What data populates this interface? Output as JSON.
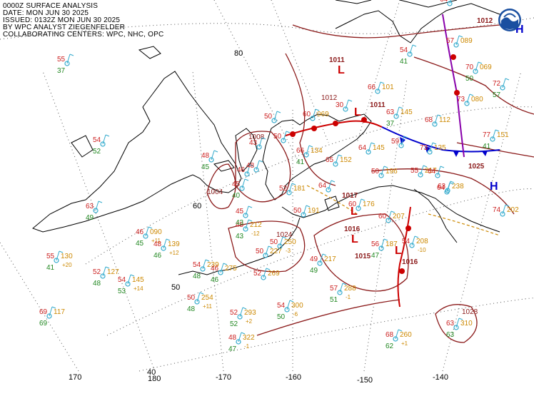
{
  "header": {
    "line1": "0000Z SURFACE ANALYSIS",
    "line2": "DATE: MON JUN 30 2025",
    "line3": "ISSUED: 0132Z MON JUN 30 2025",
    "line4": "BY WPC ANALYST ZIEGENFELDER",
    "line5": "COLLABORATING CENTERS: WPC, NHC, OPC"
  },
  "logo": {
    "icon": "noaa-logo-icon",
    "color": "#1a4fa0"
  },
  "colors": {
    "isobar": "#8b1a1a",
    "low": "#cc0000",
    "high": "#0000cc",
    "temperature": "#cc2222",
    "dewpoint": "#228822",
    "pressure": "#cc8800",
    "wind": "#33aacc",
    "coast": "#000000",
    "graticule": "#555555"
  },
  "graticule_labels": {
    "lat": [
      "80",
      "60",
      "50",
      "40"
    ],
    "lon": [
      "170",
      "180",
      "-170",
      "-160",
      "-150",
      "-140"
    ]
  },
  "isobar_labels": [
    "1012",
    "1008",
    "1004",
    "1024",
    "1028"
  ],
  "pressure_centers": [
    {
      "type": "L",
      "value": "1011"
    },
    {
      "type": "L",
      "value": "1017"
    },
    {
      "type": "L",
      "value": "1016"
    },
    {
      "type": "L",
      "value": "1015"
    },
    {
      "type": "L",
      "value": "1016"
    },
    {
      "type": "L",
      "value": "1011"
    },
    {
      "type": "H",
      "value": "1012"
    },
    {
      "type": "H",
      "value": "1025"
    }
  ],
  "stations": [
    {
      "t": "55",
      "td": "37",
      "p": ""
    },
    {
      "t": "54",
      "td": "52",
      "p": ""
    },
    {
      "t": "63",
      "td": "49",
      "p": ""
    },
    {
      "t": "55",
      "td": "41",
      "p": "130",
      "tend": "+20"
    },
    {
      "t": "52",
      "td": "48",
      "p": "127"
    },
    {
      "t": "54",
      "td": "53",
      "p": "145",
      "tend": "+14"
    },
    {
      "t": "69",
      "td": "69",
      "p": "117"
    },
    {
      "t": "46",
      "td": "45",
      "p": "090",
      "tend": "+11"
    },
    {
      "t": "48",
      "td": "46",
      "p": "139",
      "tend": "+12"
    },
    {
      "t": "54",
      "td": "48",
      "p": "239"
    },
    {
      "t": "46",
      "td": "46",
      "p": "275"
    },
    {
      "t": "50",
      "td": "48",
      "p": "254",
      "tend": "+11"
    },
    {
      "t": "52",
      "td": "52",
      "p": "293",
      "tend": "+2"
    },
    {
      "t": "48",
      "td": "47",
      "p": "322",
      "tend": "-1"
    },
    {
      "t": "52",
      "td": "",
      "p": "269"
    },
    {
      "t": "54",
      "td": "50",
      "p": "300",
      "tend": "-6"
    },
    {
      "t": "45",
      "td": "43",
      "p": "212",
      "tend": "-12"
    },
    {
      "t": "50",
      "td": "",
      "p": "227"
    },
    {
      "t": "50",
      "td": "",
      "p": "250",
      "tend": "-3"
    },
    {
      "t": "49",
      "td": "49",
      "p": "217"
    },
    {
      "t": "57",
      "td": "51",
      "p": "288",
      "tend": "-1"
    },
    {
      "t": "68",
      "td": "62",
      "p": "260",
      "tend": "+1"
    },
    {
      "t": "63",
      "td": "63",
      "p": "310"
    },
    {
      "t": "56",
      "td": "47",
      "p": "187"
    },
    {
      "t": "54",
      "td": "",
      "p": "208",
      "tend": "-10"
    },
    {
      "t": "48",
      "td": "45",
      "p": ""
    },
    {
      "t": "45",
      "td": "40",
      "p": ""
    },
    {
      "t": "45",
      "td": "43",
      "p": ""
    },
    {
      "t": "43",
      "td": "",
      "p": ""
    },
    {
      "t": "52",
      "td": "",
      "p": "181"
    },
    {
      "t": "50",
      "td": "",
      "p": "191"
    },
    {
      "t": "50",
      "td": "",
      "p": ""
    },
    {
      "t": "66",
      "td": "41",
      "p": "134"
    },
    {
      "t": "65",
      "td": "",
      "p": "152"
    },
    {
      "t": "64",
      "td": "",
      "p": "145"
    },
    {
      "t": "50",
      "td": "",
      "p": "196"
    },
    {
      "t": "55",
      "td": "",
      "p": "217"
    },
    {
      "t": "63",
      "td": "",
      "p": "238"
    },
    {
      "t": "60",
      "td": "",
      "p": "069"
    },
    {
      "t": "66",
      "td": "",
      "p": "101"
    },
    {
      "t": "63",
      "td": "37",
      "p": "145"
    },
    {
      "t": "68",
      "td": "",
      "p": "112"
    },
    {
      "t": "59",
      "td": "",
      "p": ""
    },
    {
      "t": "73",
      "td": "",
      "p": "135"
    },
    {
      "t": "70",
      "td": "50",
      "p": "069"
    },
    {
      "t": "73",
      "td": "",
      "p": "080"
    },
    {
      "t": "72",
      "td": "57",
      "p": ""
    },
    {
      "t": "77",
      "td": "41",
      "p": "151"
    },
    {
      "t": "74",
      "td": "",
      "p": "202"
    },
    {
      "t": "54",
      "td": "41",
      "p": ""
    },
    {
      "t": "57",
      "td": "",
      "p": "089"
    },
    {
      "t": "64",
      "td": "",
      "p": ""
    },
    {
      "t": "64",
      "td": "",
      "p": ""
    },
    {
      "t": "50",
      "td": "",
      "p": ""
    },
    {
      "t": "60",
      "td": "",
      "p": "207"
    },
    {
      "t": "46",
      "td": "",
      "p": ""
    },
    {
      "t": "48",
      "td": "",
      "p": ""
    },
    {
      "t": "30",
      "td": "",
      "p": ""
    },
    {
      "t": "64",
      "td": "",
      "p": ""
    },
    {
      "t": "60",
      "td": "",
      "p": "176"
    },
    {
      "t": "64",
      "td": "",
      "p": ""
    }
  ]
}
